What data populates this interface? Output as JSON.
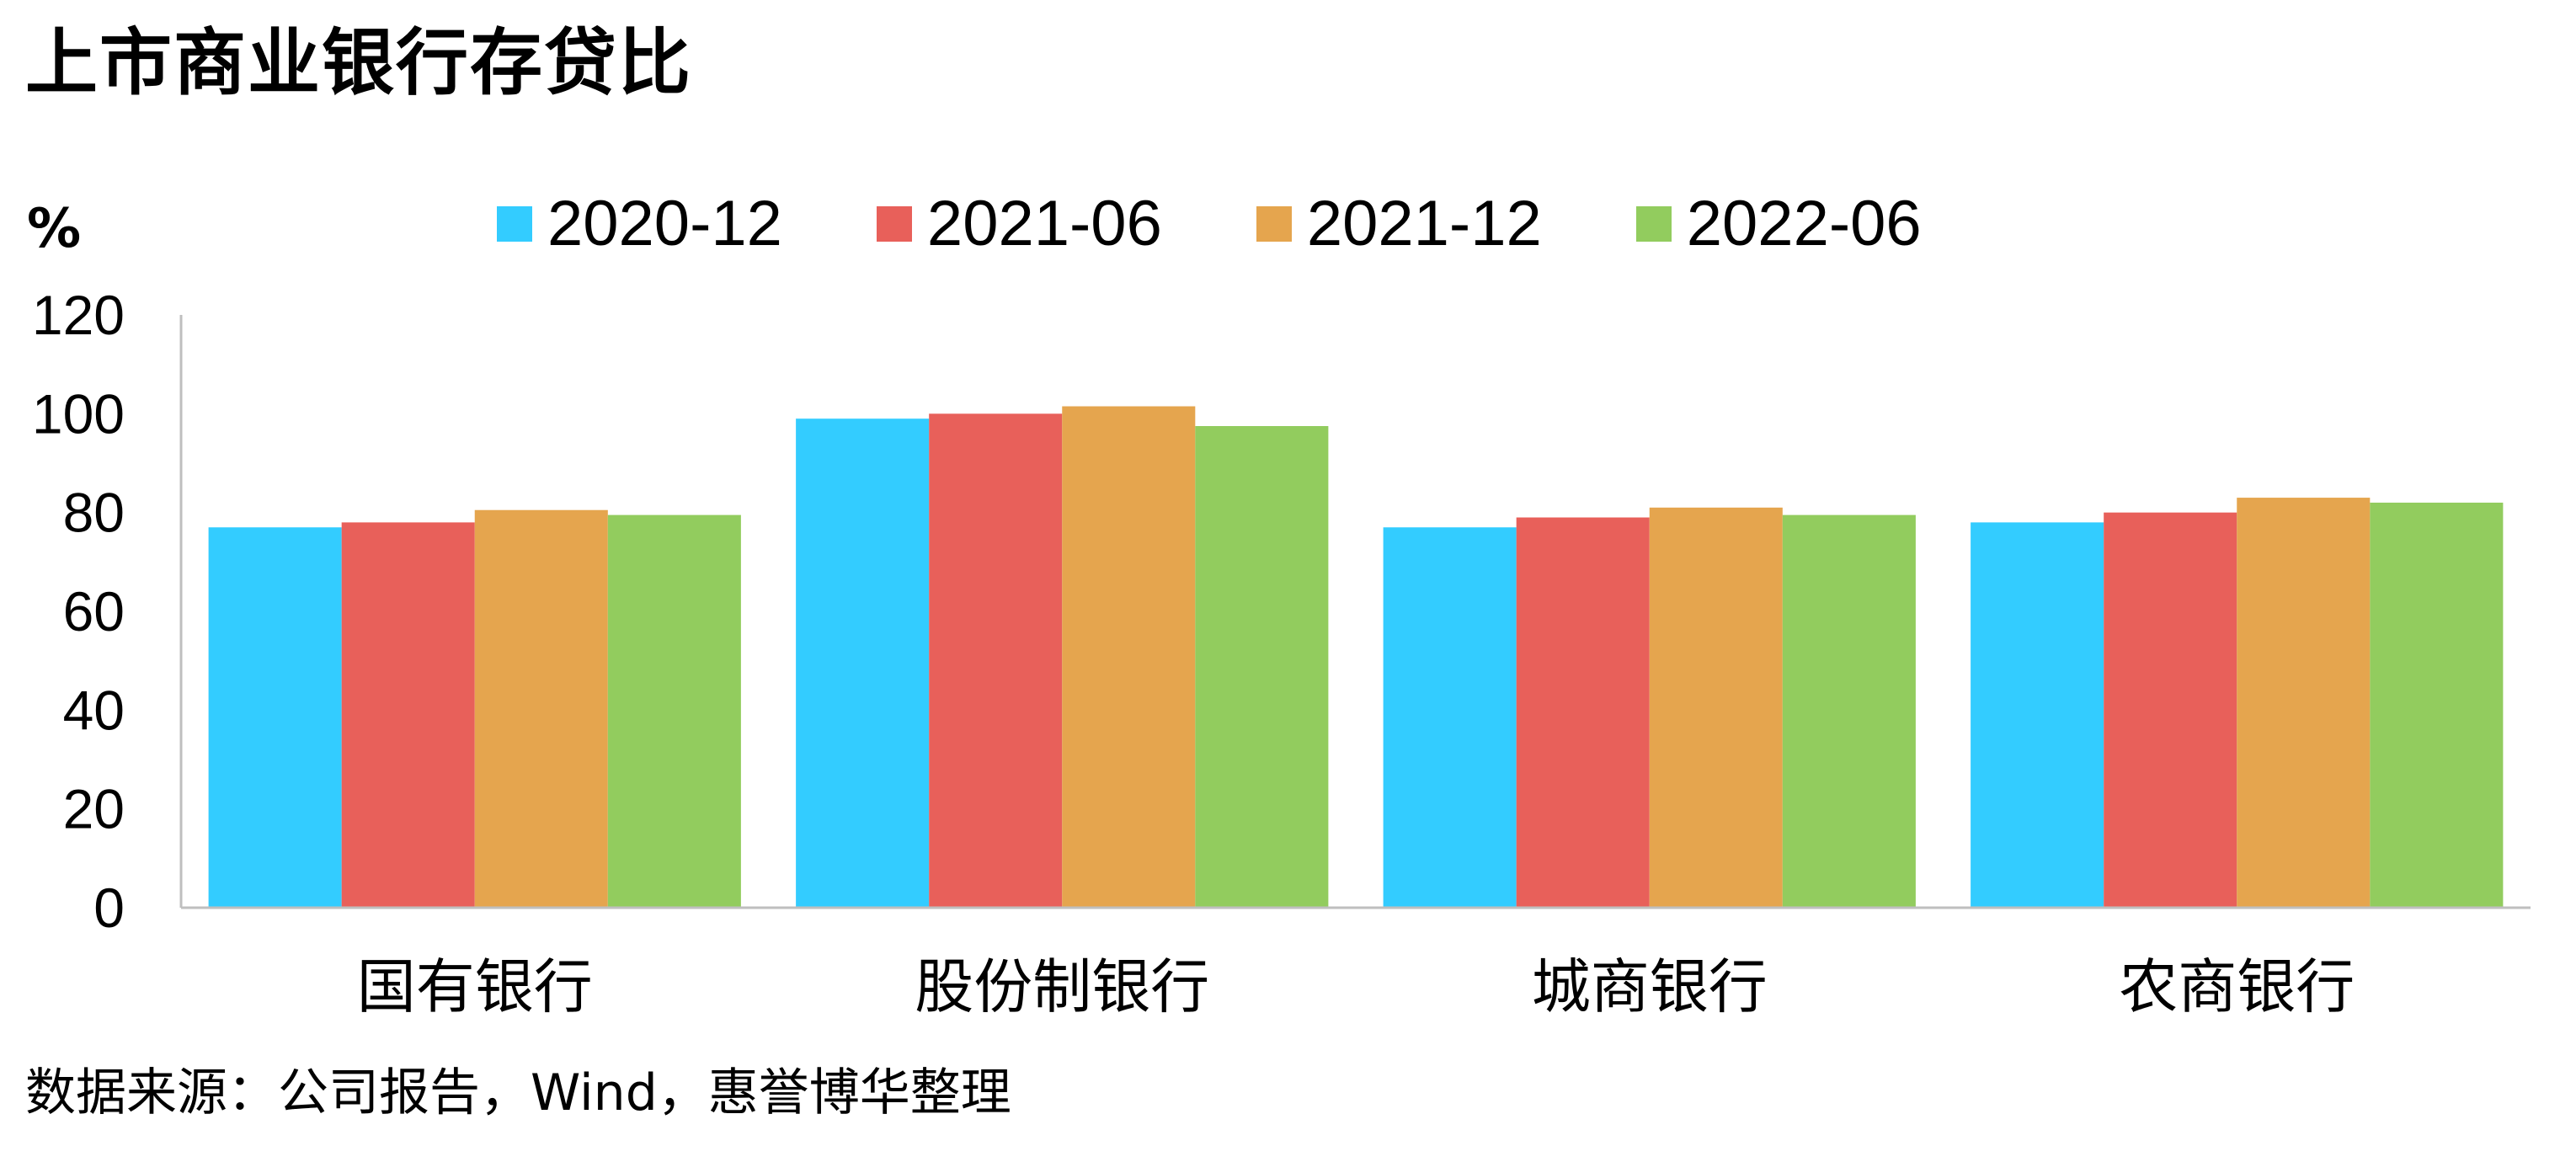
{
  "title": "上市商业银行存贷比",
  "unit_label": "%",
  "source": "数据来源：公司报告，Wind，惠誉博华整理",
  "chart_data": {
    "type": "bar",
    "title": "上市商业银行存贷比",
    "ylabel": "%",
    "xlabel": "",
    "categories": [
      "国有银行",
      "股份制银行",
      "城商银行",
      "农商银行"
    ],
    "ylim": [
      0,
      120
    ],
    "yticks": [
      0,
      20,
      40,
      60,
      80,
      100,
      120
    ],
    "grid": false,
    "legend_position": "top",
    "series": [
      {
        "name": "2020-12",
        "color": "#33CCFF",
        "values": [
          77,
          99,
          77,
          78
        ]
      },
      {
        "name": "2021-06",
        "color": "#E8605A",
        "values": [
          78,
          100,
          79,
          80
        ]
      },
      {
        "name": "2021-12",
        "color": "#E5A54E",
        "values": [
          80.5,
          101.5,
          81,
          83
        ]
      },
      {
        "name": "2022-06",
        "color": "#92CC5E",
        "values": [
          79.5,
          97.5,
          79.5,
          82
        ]
      }
    ]
  }
}
